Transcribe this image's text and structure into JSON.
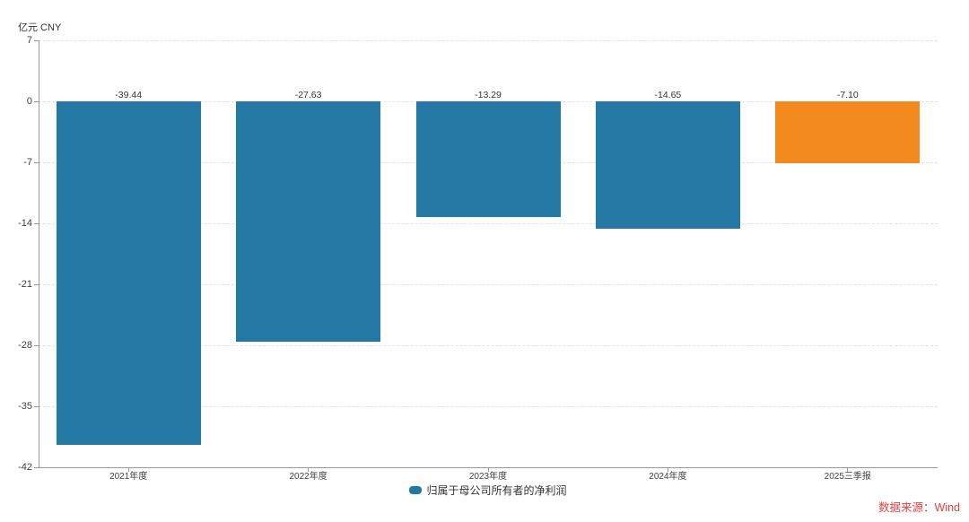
{
  "unit_label": "亿元 CNY",
  "source_note": "数据来源：Wind",
  "legend": {
    "label": "归属于母公司所有者的净利润",
    "swatch_color": "#2478a4"
  },
  "colors": {
    "bar_default": "#2478a4",
    "bar_highlight": "#f28a1e",
    "grid": "#e2e2e2",
    "axis": "#999999",
    "tick_text": "#404040",
    "value_text": "#333333",
    "source_text": "#e53e3e"
  },
  "chart_data": {
    "type": "bar",
    "title": "",
    "ylabel": "亿元 CNY",
    "categories": [
      "2021年度",
      "2022年度",
      "2023年度",
      "2024年度",
      "2025三季报"
    ],
    "values": [
      -39.44,
      -27.63,
      -13.29,
      -14.65,
      -7.1
    ],
    "value_labels": [
      "-39.44",
      "-27.63",
      "-13.29",
      "-14.65",
      "-7.10"
    ],
    "bar_colors": [
      "#2478a4",
      "#2478a4",
      "#2478a4",
      "#2478a4",
      "#f28a1e"
    ],
    "ylim": [
      -42,
      7
    ],
    "yticks": [
      7,
      0,
      -7,
      -14,
      -21,
      -28,
      -35,
      -42
    ],
    "grid": "horizontal-dashed",
    "legend_position": "bottom-center",
    "legend_entries": [
      "归属于母公司所有者的净利润"
    ]
  }
}
